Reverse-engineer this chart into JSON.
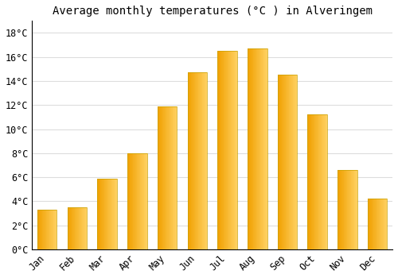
{
  "title": "Average monthly temperatures (°C ) in Alveringem",
  "months": [
    "Jan",
    "Feb",
    "Mar",
    "Apr",
    "May",
    "Jun",
    "Jul",
    "Aug",
    "Sep",
    "Oct",
    "Nov",
    "Dec"
  ],
  "values": [
    3.3,
    3.5,
    5.9,
    8.0,
    11.9,
    14.7,
    16.5,
    16.7,
    14.5,
    11.2,
    6.6,
    4.2
  ],
  "bar_color_dark": "#F0A000",
  "bar_color_light": "#FFD060",
  "bar_edge_color": "#C8A000",
  "background_color": "#FFFFFF",
  "plot_bg_color": "#FFFFFF",
  "grid_color": "#DDDDDD",
  "ylim": [
    0,
    19
  ],
  "yticks": [
    0,
    2,
    4,
    6,
    8,
    10,
    12,
    14,
    16,
    18
  ],
  "title_fontsize": 10,
  "tick_fontsize": 8.5
}
